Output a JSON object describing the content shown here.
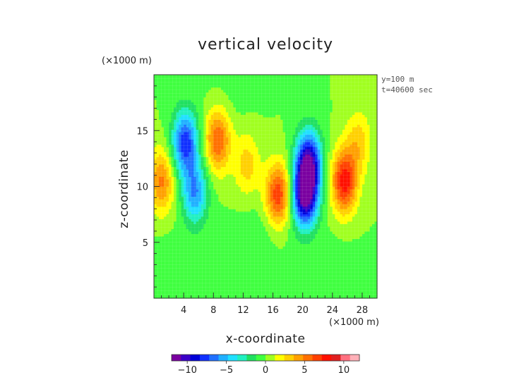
{
  "chart_data": {
    "type": "heatmap",
    "title": "vertical velocity",
    "xlabel": "x-coordinate",
    "ylabel": "z-coordinate",
    "x_unit": "(×1000 m)",
    "y_unit": "(×1000 m)",
    "annotations": [
      "y=100 m",
      "t=40600 sec"
    ],
    "xlim": [
      0,
      30
    ],
    "ylim": [
      0,
      20
    ],
    "x_ticks": [
      4,
      8,
      12,
      16,
      20,
      24,
      28
    ],
    "y_ticks": [
      5,
      10,
      15
    ],
    "grid": true,
    "colorbar": {
      "range": [
        -12,
        12
      ],
      "tick_values": [
        -10,
        -5,
        0,
        5,
        10
      ],
      "tick_labels": [
        "−10",
        "−5",
        "0",
        "5",
        "10"
      ],
      "colors": [
        "#7a00a0",
        "#3a00c8",
        "#0000d8",
        "#1030ff",
        "#2070ff",
        "#20b0ff",
        "#20e0ff",
        "#20f0c0",
        "#20e060",
        "#40ff40",
        "#a0ff20",
        "#ffff00",
        "#ffd000",
        "#ffa000",
        "#ff7000",
        "#ff4000",
        "#ff1000",
        "#e02020",
        "#ff7080",
        "#ffb0b8"
      ]
    },
    "field": {
      "background": 0,
      "features": [
        {
          "x": 1,
          "z": 10.5,
          "value": 5
        },
        {
          "x": 4.2,
          "z": 14,
          "value": -8
        },
        {
          "x": 5.5,
          "z": 9.5,
          "value": -6
        },
        {
          "x": 8.6,
          "z": 14.2,
          "value": 6
        },
        {
          "x": 12.5,
          "z": 12,
          "value": 3
        },
        {
          "x": 16.7,
          "z": 9.3,
          "value": 7
        },
        {
          "x": 20.8,
          "z": 12.2,
          "value": -10
        },
        {
          "x": 20.3,
          "z": 9.2,
          "value": -11
        },
        {
          "x": 25.6,
          "z": 10.5,
          "value": 8
        },
        {
          "x": 27.5,
          "z": 14,
          "value": 3
        },
        {
          "x": 14.5,
          "z": 6,
          "value": -0.8
        },
        {
          "x": 3,
          "z": 3.5,
          "value": -0.6
        },
        {
          "x": 24,
          "z": 3,
          "value": -0.6
        },
        {
          "x": 10,
          "z": 18,
          "value": -0.5
        }
      ]
    }
  }
}
